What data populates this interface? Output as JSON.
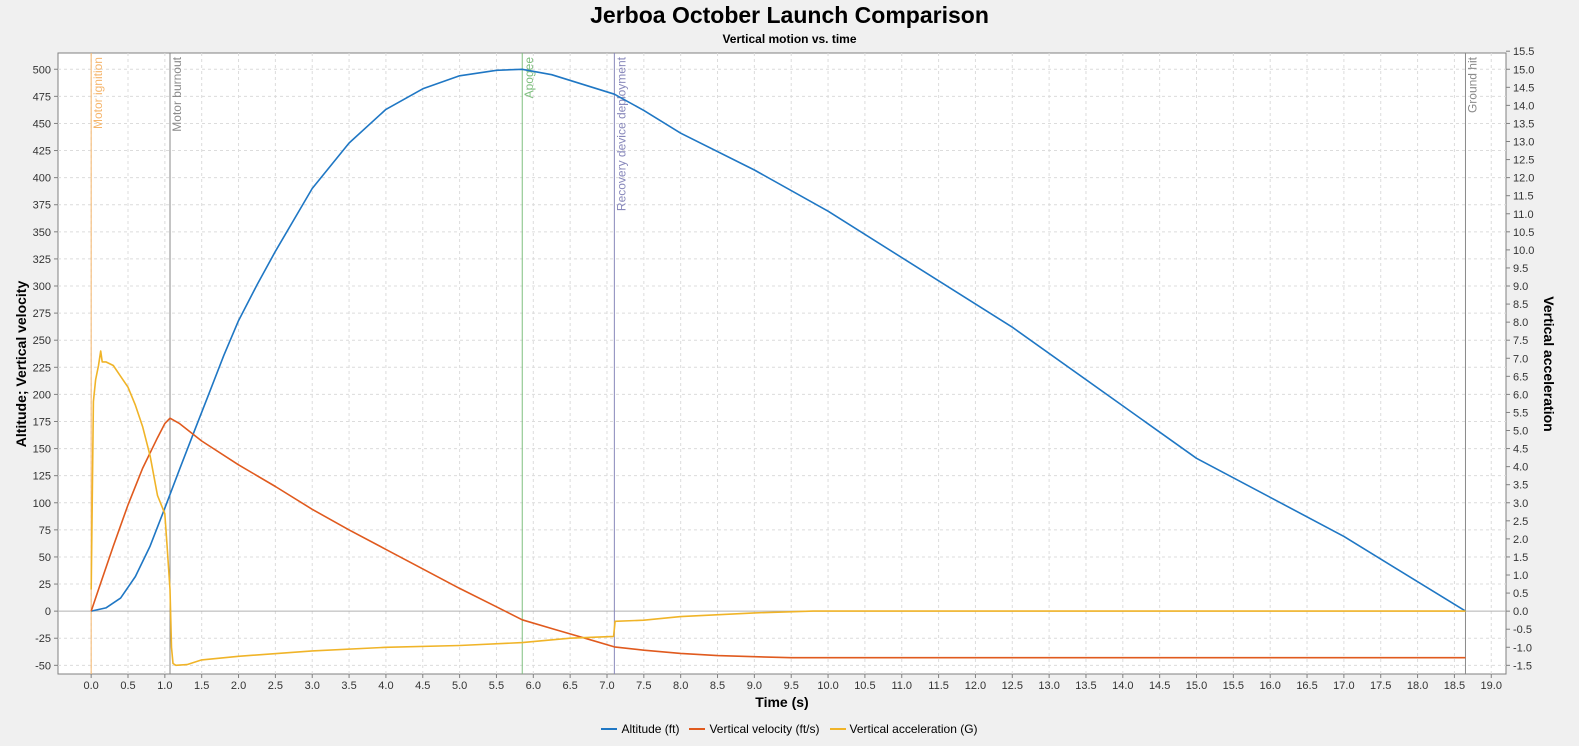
{
  "title": "Jerboa October Launch Comparison",
  "subtitle": "Vertical motion vs. time",
  "colors": {
    "altitude": "#1f77c4",
    "velocity": "#e05a1e",
    "acceleration": "#f0b428",
    "ignition": "#f5b56b",
    "burnout": "#8a8a8a",
    "apogee": "#7fbf7f",
    "recovery": "#8888bb",
    "ground": "#8a8a8a"
  },
  "chart_data": {
    "type": "line",
    "xlabel": "Time (s)",
    "ylabel": "Altitude; Vertical velocity",
    "y2label": "Vertical acceleration",
    "xlim": [
      -0.45,
      19.2
    ],
    "ylim": [
      -58,
      515
    ],
    "y2lim": [
      -1.74,
      15.45
    ],
    "xticks": [
      "0.0",
      "0.5",
      "1.0",
      "1.5",
      "2.0",
      "2.5",
      "3.0",
      "3.5",
      "4.0",
      "4.5",
      "5.0",
      "5.5",
      "6.0",
      "6.5",
      "7.0",
      "7.5",
      "8.0",
      "8.5",
      "9.0",
      "9.5",
      "10.0",
      "10.5",
      "11.0",
      "11.5",
      "12.0",
      "12.5",
      "13.0",
      "13.5",
      "14.0",
      "14.5",
      "15.0",
      "15.5",
      "16.0",
      "16.5",
      "17.0",
      "17.5",
      "18.0",
      "18.5",
      "19.0"
    ],
    "yticks": [
      "-50",
      "-25",
      "0",
      "25",
      "50",
      "75",
      "100",
      "125",
      "150",
      "175",
      "200",
      "225",
      "250",
      "275",
      "300",
      "325",
      "350",
      "375",
      "400",
      "425",
      "450",
      "475",
      "500"
    ],
    "y2ticks": [
      "-1.5",
      "-1.0",
      "-0.5",
      "0.0",
      "0.5",
      "1.0",
      "1.5",
      "2.0",
      "2.5",
      "3.0",
      "3.5",
      "4.0",
      "4.5",
      "5.0",
      "5.5",
      "6.0",
      "6.5",
      "7.0",
      "7.5",
      "8.0",
      "8.5",
      "9.0",
      "9.5",
      "10.0",
      "10.5",
      "11.0",
      "11.5",
      "12.0",
      "12.5",
      "13.0",
      "13.5",
      "14.0",
      "14.5",
      "15.0",
      "15.5"
    ],
    "grid": true,
    "legend_position": "bottom",
    "events": [
      {
        "label": "Motor ignition",
        "t": 0.0,
        "color_key": "ignition"
      },
      {
        "label": "Motor burnout",
        "t": 1.07,
        "color_key": "burnout"
      },
      {
        "label": "Apogee",
        "t": 5.85,
        "color_key": "apogee"
      },
      {
        "label": "Recovery device deployment",
        "t": 7.1,
        "color_key": "recovery"
      },
      {
        "label": "Ground hit",
        "t": 18.65,
        "color_key": "ground"
      }
    ],
    "series": [
      {
        "name": "Altitude (ft)",
        "axis": "left",
        "color_key": "altitude",
        "x": [
          0,
          0.2,
          0.4,
          0.6,
          0.8,
          1.0,
          1.2,
          1.4,
          1.6,
          1.8,
          2.0,
          2.25,
          2.5,
          3.0,
          3.5,
          4.0,
          4.5,
          5.0,
          5.5,
          5.85,
          6.25,
          7.1,
          7.5,
          8.0,
          9.0,
          10.0,
          12.5,
          15.0,
          17.0,
          18.65
        ],
        "y": [
          0,
          3,
          12,
          32,
          60,
          95,
          131,
          166,
          201,
          236,
          268,
          301,
          332,
          390,
          432,
          463,
          482,
          494,
          499,
          500,
          495,
          477,
          462,
          441,
          407,
          369,
          262,
          141,
          69,
          0
        ]
      },
      {
        "name": "Vertical velocity (ft/s)",
        "axis": "left",
        "color_key": "velocity",
        "x": [
          0,
          0.1,
          0.3,
          0.5,
          0.7,
          0.9,
          1.0,
          1.07,
          1.2,
          1.5,
          2.0,
          2.5,
          3.0,
          3.5,
          4.0,
          4.5,
          5.0,
          5.5,
          5.85,
          6.3,
          6.7,
          7.1,
          7.5,
          8.0,
          8.5,
          9.0,
          9.5,
          10.0,
          12.0,
          15.0,
          18.65
        ],
        "y": [
          0,
          20,
          60,
          98,
          132,
          160,
          173,
          178,
          173,
          157,
          135,
          115,
          94,
          75,
          57,
          39,
          21,
          4,
          -8,
          -17,
          -25,
          -33,
          -36,
          -39,
          -41,
          -42,
          -43,
          -43,
          -43,
          -43,
          -43
        ]
      },
      {
        "name": "Vertical acceleration (G)",
        "axis": "right",
        "color_key": "acceleration",
        "x": [
          0,
          0.03,
          0.06,
          0.1,
          0.13,
          0.15,
          0.2,
          0.3,
          0.4,
          0.5,
          0.6,
          0.7,
          0.8,
          0.9,
          1.0,
          1.03,
          1.07,
          1.09,
          1.11,
          1.15,
          1.3,
          1.5,
          2.0,
          3.0,
          4.0,
          5.0,
          5.85,
          6.5,
          7.09,
          7.11,
          7.5,
          8.0,
          9.0,
          9.8,
          12.0,
          18.65
        ],
        "y": [
          0.6,
          5.8,
          6.4,
          6.8,
          7.2,
          6.9,
          6.9,
          6.8,
          6.5,
          6.2,
          5.7,
          5.1,
          4.3,
          3.2,
          2.7,
          1.8,
          0.6,
          -1.0,
          -1.45,
          -1.5,
          -1.48,
          -1.35,
          -1.25,
          -1.1,
          -1.0,
          -0.95,
          -0.87,
          -0.75,
          -0.7,
          -0.28,
          -0.25,
          -0.15,
          -0.05,
          0.0,
          0.0,
          0.0
        ]
      }
    ]
  }
}
